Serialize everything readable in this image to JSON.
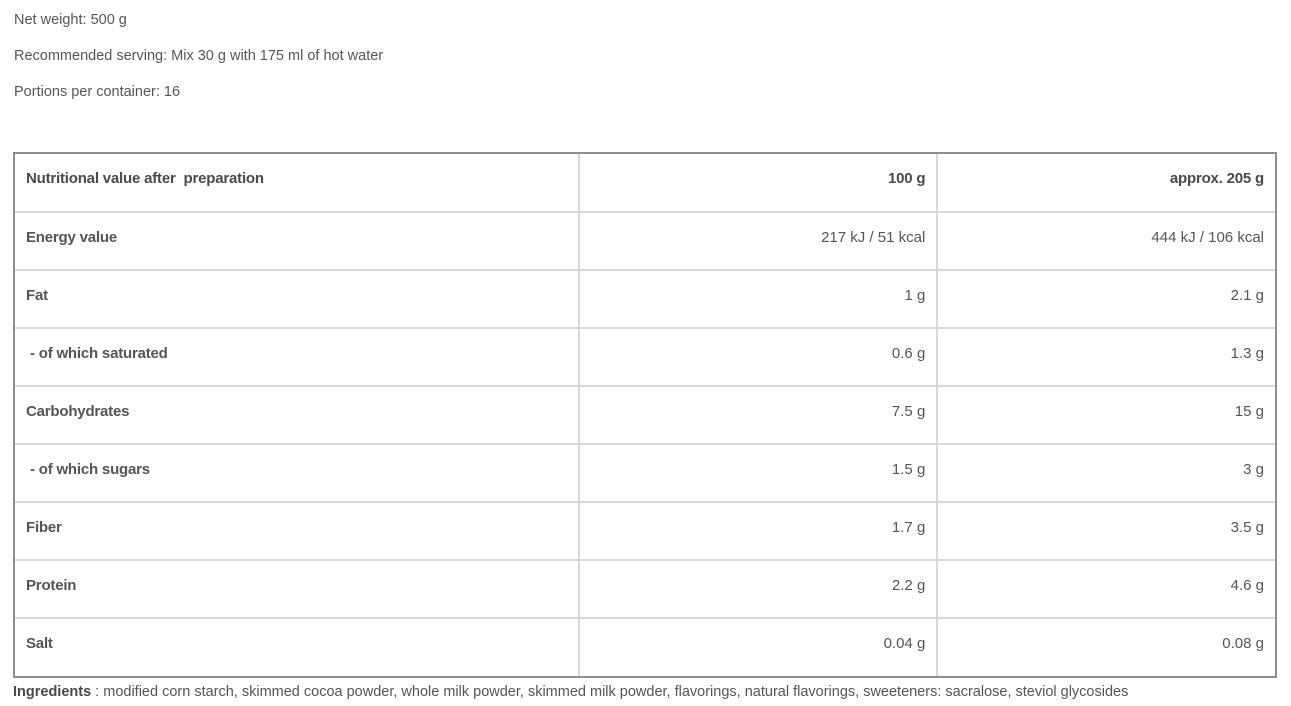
{
  "product_info": {
    "net_weight": "Net weight: 500 g",
    "recommended_serving": "Recommended serving: Mix 30 g with 175 ml of hot water",
    "portions": "Portions per container: 16"
  },
  "nutrition_table": {
    "headers": {
      "col_label": "Nutritional value after  preparation",
      "col_100g": "100 g",
      "col_serving": "approx. 205 g"
    },
    "rows": [
      {
        "label": "Energy value",
        "per_100g": "217 kJ / 51 kcal",
        "per_serving": "444 kJ / 106 kcal"
      },
      {
        "label": "Fat",
        "per_100g": "1 g",
        "per_serving": "2.1 g"
      },
      {
        "label": " - of which saturated",
        "per_100g": "0.6 g",
        "per_serving": "1.3 g"
      },
      {
        "label": "Carbohydrates",
        "per_100g": "7.5 g",
        "per_serving": "15 g"
      },
      {
        "label": " - of which sugars",
        "per_100g": "1.5 g",
        "per_serving": "3 g"
      },
      {
        "label": "Fiber",
        "per_100g": "1.7 g",
        "per_serving": "3.5 g"
      },
      {
        "label": "Protein",
        "per_100g": "2.2 g",
        "per_serving": "4.6 g"
      },
      {
        "label": "Salt",
        "per_100g": "0.04 g",
        "per_serving": "0.08 g"
      }
    ]
  },
  "ingredients": {
    "label": "Ingredients",
    "text": " : modified corn starch, skimmed cocoa powder, whole milk powder, skimmed milk powder, flavorings, natural flavorings, sweeteners: sacralose, steviol glycosides"
  },
  "colors": {
    "body_text": "#555555",
    "label_text": "#4a4a4a",
    "outer_border": "#8f8f8f",
    "inner_border": "#d8d8d8",
    "background": "#ffffff"
  }
}
